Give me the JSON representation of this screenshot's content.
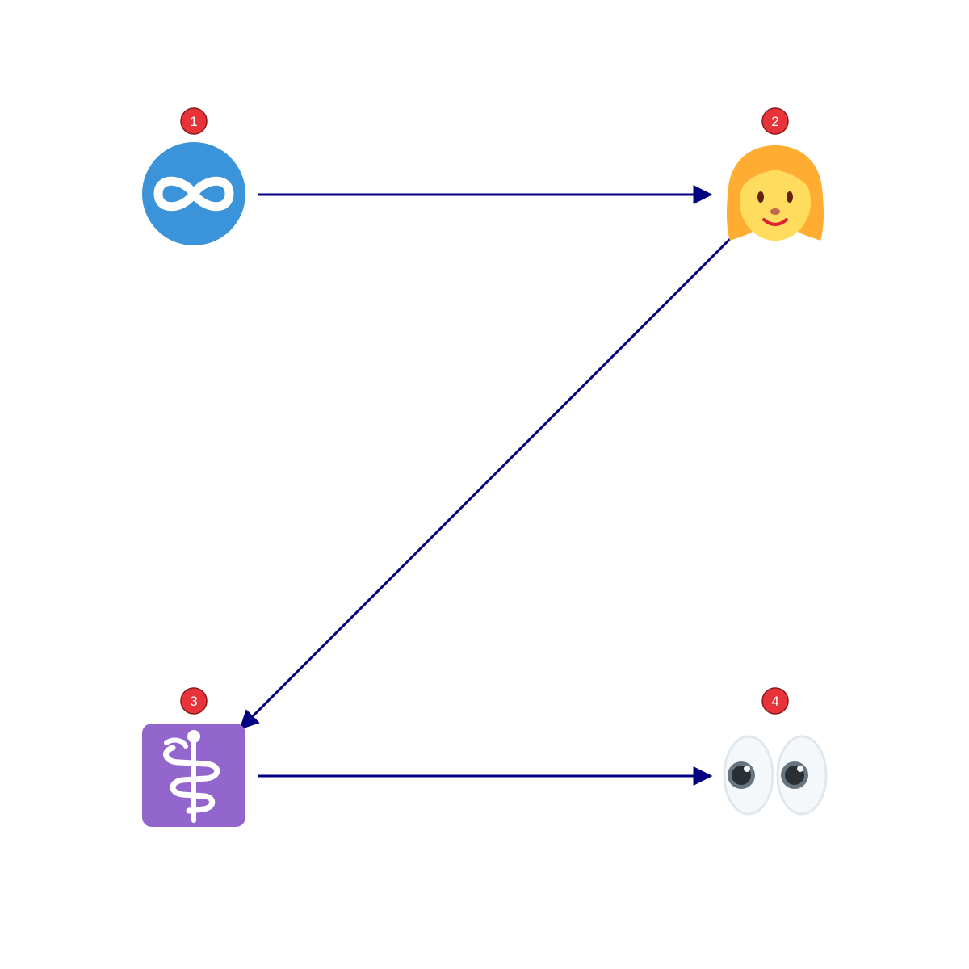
{
  "colors": {
    "arrow": "#000080",
    "badge_fill": "#e8333a",
    "badge_stroke": "#8a1a1e",
    "infinity_bg": "#3b94d9",
    "medical_bg": "#9266cc",
    "hair": "#ffac33",
    "face": "#ffdc5d",
    "eye_white": "#e7ecf1",
    "pupil": "#292f33",
    "iris": "#66757f"
  },
  "nodes": [
    {
      "id": 1,
      "badge": "1",
      "icon": "infinity-icon"
    },
    {
      "id": 2,
      "badge": "2",
      "icon": "woman-icon"
    },
    {
      "id": 3,
      "badge": "3",
      "icon": "medical-symbol-icon"
    },
    {
      "id": 4,
      "badge": "4",
      "icon": "eyes-icon"
    }
  ],
  "edges": [
    {
      "from": 1,
      "to": 2
    },
    {
      "from": 2,
      "to": 3
    },
    {
      "from": 3,
      "to": 4
    }
  ]
}
